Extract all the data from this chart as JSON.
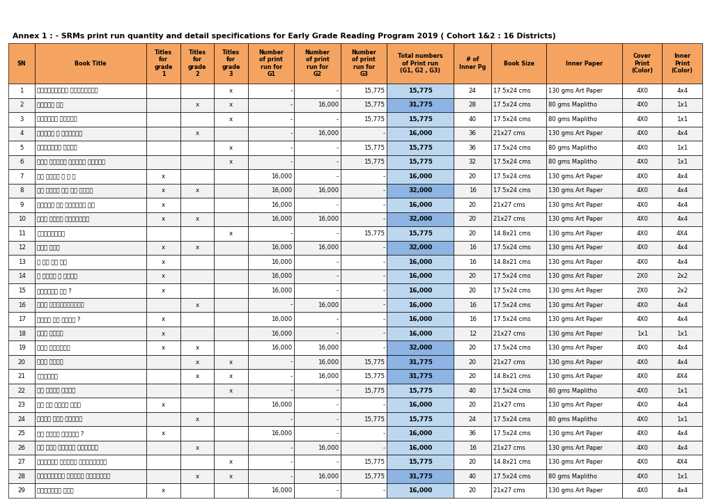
{
  "title": "Annex 1 : - SRMs print run quantity and detail specifications for Early Grade Reading Program 2019 ( Cohort 1&2 : 16 Districts)",
  "col_headers": [
    "SN",
    "Book Title",
    "Titles\nfor\ngrade\n1",
    "Titles\nfor\ngrade\n2",
    "Titles\nfor\ngrade\n3",
    "Number\nof print\nrun for\nG1",
    "Number\nof print\nrun for\nG2",
    "Number\nof print\nrun for\nG3",
    "Total numbers\nof Print run\n(G1, G2 , G3)",
    "# of\nInner Pg",
    "Book Size",
    "Inner Paper",
    "Cover\nPrint\n(Color)",
    "Inner\nPrint\n(Color)"
  ],
  "col_widths_rel": [
    3.0,
    12.5,
    3.8,
    3.8,
    3.8,
    5.2,
    5.2,
    5.2,
    7.5,
    4.2,
    6.2,
    8.5,
    4.5,
    4.5
  ],
  "header_color": "#F4A460",
  "total_color_high": "#8DB4E2",
  "total_color_low": "#BDD7EE",
  "rows": [
    [
      1,
      "अनारकलीको अन्तरकथा",
      "",
      "",
      "x",
      "-",
      "-",
      "15,775",
      "15,775",
      24,
      "17.5x24 cms",
      "130 gms Art Paper",
      "4X0",
      "4x4"
    ],
    [
      2,
      "अनोठो फल",
      "",
      "x",
      "x",
      "-",
      "16,000",
      "15,775",
      "31,775",
      28,
      "17.5x24 cms",
      "80 gms Maplitho",
      "4X0",
      "1x1"
    ],
    [
      3,
      "अमूल्य उपहार",
      "",
      "",
      "x",
      "-",
      "-",
      "15,775",
      "15,775",
      40,
      "17.5x24 cms",
      "80 gms Maplitho",
      "4X0",
      "1x1"
    ],
    [
      4,
      "अर्ती र बुद्धि",
      "",
      "x",
      "",
      "-",
      "16,000",
      "-",
      "16,000",
      36,
      "21x27 cms",
      "130 gms Art Paper",
      "4X0",
      "4x4"
    ],
    [
      5,
      "अल्चीको औषधी",
      "",
      "",
      "x",
      "-",
      "-",
      "15,775",
      "15,775",
      36,
      "17.5x24 cms",
      "80 gms Maplitho",
      "4X0",
      "1x1"
    ],
    [
      6,
      "असी दिनमा विश्व भ्रमण",
      "",
      "",
      "x",
      "-",
      "-",
      "15,775",
      "15,775",
      32,
      "17.5x24 cms",
      "80 gms Maplitho",
      "4X0",
      "1x1"
    ],
    [
      7,
      "आउ गरौँ १ २ ३",
      "x",
      "",
      "",
      "16,000",
      "-",
      "-",
      "16,000",
      20,
      "17.5x24 cms",
      "130 gms Art Paper",
      "4X0",
      "4x4"
    ],
    [
      8,
      "आज मैले के के जाने",
      "x",
      "x",
      "",
      "16,000",
      "16,000",
      "-",
      "32,000",
      16,
      "17.5x24 cms",
      "130 gms Art Paper",
      "4X0",
      "4x4"
    ],
    [
      9,
      "आफ्नो घर राम्रो घर",
      "x",
      "",
      "",
      "16,000",
      "-",
      "-",
      "16,000",
      20,
      "21x27 cms",
      "130 gms Art Paper",
      "4X0",
      "4x4"
    ],
    [
      10,
      "आमा खुसी हुनुभयो",
      "x",
      "x",
      "",
      "16,000",
      "16,000",
      "-",
      "32,000",
      20,
      "21x27 cms",
      "130 gms Art Paper",
      "4X0",
      "4x4"
    ],
    [
      11,
      "उफ्न्यका",
      "",
      "",
      "x",
      "-",
      "-",
      "15,775",
      "15,775",
      20,
      "14.8x21 cms",
      "130 gms Art Paper",
      "4X0",
      "4X4"
    ],
    [
      12,
      "औतु गीत",
      "x",
      "x",
      "",
      "16,000",
      "16,000",
      "-",
      "32,000",
      16,
      "17.5x24 cms",
      "130 gms Art Paper",
      "4X0",
      "4x4"
    ],
    [
      13,
      "क का कि की",
      "x",
      "",
      "",
      "16,000",
      "-",
      "-",
      "16,000",
      16,
      "14.8x21 cms",
      "130 gms Art Paper",
      "4X0",
      "4x4"
    ],
    [
      14,
      "क देखि न सम्म",
      "x",
      "",
      "",
      "16,000",
      "-",
      "-",
      "16,000",
      20,
      "17.5x24 cms",
      "130 gms Art Paper",
      "2X0",
      "2x2"
    ],
    [
      15,
      "कलातिर छौ ?",
      "x",
      "",
      "",
      "16,000",
      "-",
      "-",
      "16,000",
      20,
      "17.5x24 cms",
      "130 gms Art Paper",
      "2X0",
      "2x2"
    ],
    [
      16,
      "कथा सानुबेलाको",
      "",
      "x",
      "",
      "-",
      "16,000",
      "-",
      "16,000",
      16,
      "17.5x24 cms",
      "130 gms Art Paper",
      "4X0",
      "4x4"
    ],
    [
      17,
      "कसले के भन्द ?",
      "x",
      "",
      "",
      "16,000",
      "-",
      "-",
      "16,000",
      16,
      "17.5x24 cms",
      "130 gms Art Paper",
      "4X0",
      "4x4"
    ],
    [
      18,
      "काग साथी",
      "x",
      "",
      "",
      "16,000",
      "-",
      "-",
      "16,000",
      12,
      "21x27 cms",
      "130 gms Art Paper",
      "1x1",
      "1x1"
    ],
    [
      19,
      "किन डराउनु",
      "x",
      "x",
      "",
      "16,000",
      "16,000",
      "-",
      "32,000",
      20,
      "17.5x24 cms",
      "130 gms Art Paper",
      "4X0",
      "4x4"
    ],
    [
      20,
      "कुन समूह",
      "",
      "x",
      "x",
      "-",
      "16,000",
      "15,775",
      "31,775",
      20,
      "21x27 cms",
      "130 gms Art Paper",
      "4X0",
      "4x4"
    ],
    [
      21,
      "कुहिरे",
      "",
      "x",
      "x",
      "-",
      "16,000",
      "15,775",
      "31,775",
      20,
      "14.8x21 cms",
      "130 gms Art Paper",
      "4X0",
      "4X4"
    ],
    [
      22,
      "के कसरी बन्छ",
      "",
      "",
      "x",
      "-",
      "-",
      "15,775",
      "15,775",
      40,
      "17.5x24 cms",
      "80 gms Maplitho",
      "4X0",
      "1x1"
    ],
    [
      23,
      "के हो मेरो नाम",
      "x",
      "",
      "",
      "16,000",
      "-",
      "-",
      "16,000",
      20,
      "21x27 cms",
      "130 gms Art Paper",
      "4X0",
      "4x4"
    ],
    [
      24,
      "कोही अमर मानिस",
      "",
      "x",
      "",
      "-",
      "-",
      "15,775",
      "15,775",
      24,
      "17.5x24 cms",
      "80 gms Maplitho",
      "4X0",
      "1x1"
    ],
    [
      25,
      "को कसरी बोल्छ ?",
      "x",
      "",
      "",
      "16,000",
      "-",
      "-",
      "16,000",
      36,
      "17.5x24 cms",
      "130 gms Art Paper",
      "4X0",
      "4x4"
    ],
    [
      26,
      "को सबे भन्दा बढिमान",
      "",
      "x",
      "",
      "-",
      "16,000",
      "-",
      "16,000",
      16,
      "21x27 cms",
      "130 gms Art Paper",
      "4X0",
      "4x4"
    ],
    [
      27,
      "खानामा पाउने पोषाहारु",
      "",
      "",
      "x",
      "-",
      "-",
      "15,775",
      "15,775",
      20,
      "14.8x21 cms",
      "130 gms Art Paper",
      "4X0",
      "4X4"
    ],
    [
      28,
      "खालडांगा परेको भकुण्डो",
      "",
      "x",
      "x",
      "-",
      "16,000",
      "15,775",
      "31,775",
      40,
      "17.5x24 cms",
      "80 gms Maplitho",
      "4X0",
      "1x1"
    ],
    [
      29,
      "खोरिमाइ मने",
      "x",
      "",
      "",
      "16,000",
      "-",
      "-",
      "16,000",
      20,
      "21x27 cms",
      "130 gms Art Paper",
      "4X0",
      "4x4"
    ]
  ]
}
